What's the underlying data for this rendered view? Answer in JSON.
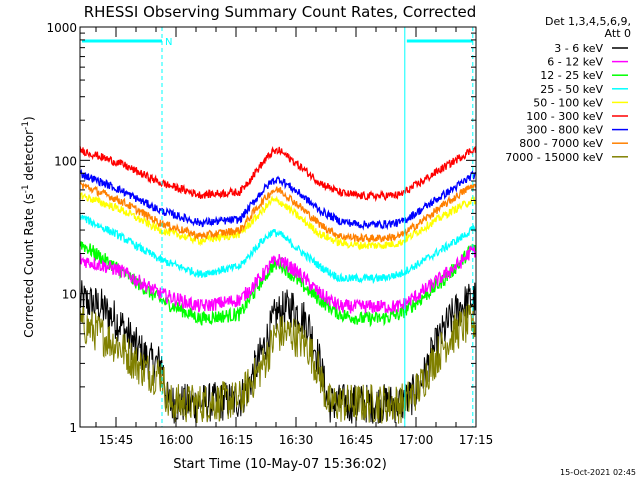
{
  "chart_data": {
    "type": "line",
    "title": "RHESSI Observing Summary Count Rates, Corrected",
    "xlabel": "Start Time (10-May-07 15:36:02)",
    "ylabel_main": "Corrected Count Rate (s",
    "ylabel_sup1": "-1",
    "ylabel_mid": " detector",
    "ylabel_sup2": "-1",
    "ylabel_end": ")",
    "yscale": "log",
    "ylim": [
      1,
      1000
    ],
    "y_ticks": [
      1,
      10,
      100,
      1000
    ],
    "y_tick_labels": [
      "1",
      "10",
      "100",
      "1000"
    ],
    "x_range_minutes": [
      0,
      99
    ],
    "x_ticks": [
      9,
      24,
      39,
      54,
      69,
      84,
      99
    ],
    "x_tick_labels": [
      "15:45",
      "16:00",
      "16:15",
      "16:30",
      "16:45",
      "17:00",
      "17:15"
    ],
    "legend_header": [
      "Det 1,3,4,5,6,9,",
      "Att 0"
    ],
    "legend_placement": "right",
    "footer_date": "15-Oct-2021 02:45",
    "night_marker": "N",
    "night_intervals_minutes": [
      [
        0,
        20.5
      ],
      [
        81.2,
        98.2
      ]
    ],
    "saa_lines_minutes": [
      0,
      20.5,
      81.2,
      98.2
    ],
    "series": [
      {
        "name": "3 - 6 keV",
        "color": "#000000",
        "x": [
          0,
          5,
          10,
          14,
          18,
          20.5,
          22,
          30,
          40,
          42,
          46,
          49,
          53,
          57,
          60,
          62,
          70,
          80,
          82,
          85,
          88,
          92,
          95,
          98
        ],
        "y": [
          9,
          8,
          6,
          4,
          3,
          3,
          1.5,
          1.5,
          1.6,
          2,
          4,
          7,
          8,
          6,
          3,
          1.5,
          1.5,
          1.5,
          1.6,
          2,
          3.5,
          6,
          8,
          9
        ]
      },
      {
        "name": "6 - 12 keV",
        "color": "#ff00ff",
        "x": [
          0,
          10,
          20,
          30,
          40,
          45,
          48,
          50,
          55,
          60,
          65,
          70,
          75,
          80,
          85,
          90,
          95,
          98
        ],
        "y": [
          18,
          15,
          10,
          8,
          9,
          13,
          17,
          18,
          14,
          10,
          8,
          8,
          8,
          8,
          10,
          13,
          17,
          21
        ]
      },
      {
        "name": "12 - 25 keV",
        "color": "#00ff00",
        "x": [
          0,
          10,
          20,
          30,
          40,
          45,
          48,
          50,
          55,
          60,
          65,
          70,
          75,
          80,
          85,
          90,
          95,
          98
        ],
        "y": [
          24,
          15,
          9,
          6.5,
          7,
          12,
          16,
          17,
          12,
          9,
          7,
          6.5,
          6.5,
          7,
          9,
          12,
          17,
          22
        ]
      },
      {
        "name": "25 - 50 keV",
        "color": "#00ffff",
        "x": [
          0,
          10,
          20,
          30,
          40,
          45,
          48,
          50,
          55,
          60,
          65,
          70,
          75,
          80,
          85,
          90,
          95,
          98
        ],
        "y": [
          38,
          27,
          18,
          14,
          16,
          24,
          29,
          28,
          21,
          16,
          13,
          13,
          13,
          14,
          17,
          21,
          26,
          30
        ]
      },
      {
        "name": "50 - 100 keV",
        "color": "#ffff00",
        "x": [
          0,
          10,
          20,
          30,
          40,
          45,
          48,
          50,
          55,
          60,
          65,
          70,
          75,
          80,
          85,
          90,
          95,
          98
        ],
        "y": [
          55,
          43,
          30,
          25,
          28,
          40,
          50,
          49,
          37,
          28,
          24,
          23,
          23,
          24,
          30,
          37,
          45,
          50
        ]
      },
      {
        "name": "100 - 300 keV",
        "color": "#ff0000",
        "x": [
          0,
          10,
          20,
          30,
          40,
          45,
          48,
          50,
          55,
          60,
          65,
          70,
          75,
          80,
          85,
          90,
          95,
          98
        ],
        "y": [
          120,
          95,
          68,
          55,
          58,
          90,
          115,
          118,
          90,
          68,
          57,
          54,
          54,
          55,
          68,
          85,
          105,
          120
        ]
      },
      {
        "name": "300 - 800 keV",
        "color": "#0000ff",
        "x": [
          0,
          10,
          20,
          30,
          40,
          45,
          48,
          50,
          55,
          60,
          65,
          70,
          75,
          80,
          85,
          90,
          95,
          98
        ],
        "y": [
          80,
          60,
          42,
          34,
          36,
          56,
          70,
          72,
          56,
          42,
          35,
          33,
          33,
          34,
          42,
          53,
          66,
          77
        ]
      },
      {
        "name": "800 - 7000 keV",
        "color": "#ff8000",
        "x": [
          0,
          10,
          20,
          30,
          40,
          45,
          48,
          50,
          55,
          60,
          65,
          70,
          75,
          80,
          85,
          90,
          95,
          98
        ],
        "y": [
          66,
          50,
          34,
          27,
          30,
          47,
          59,
          60,
          45,
          33,
          27,
          26,
          26,
          27,
          34,
          44,
          56,
          64
        ]
      },
      {
        "name": "7000 - 15000 keV",
        "color": "#808000",
        "x": [
          0,
          5,
          10,
          14,
          18,
          20.5,
          22,
          30,
          40,
          42,
          46,
          49,
          53,
          57,
          60,
          62,
          70,
          80,
          82,
          85,
          88,
          92,
          95,
          98
        ],
        "y": [
          6,
          5,
          4,
          3,
          2.5,
          2.5,
          1.5,
          1.5,
          1.6,
          2,
          3,
          5,
          5,
          4,
          2.5,
          1.5,
          1.5,
          1.5,
          1.6,
          2,
          3,
          4.5,
          5.5,
          6
        ]
      }
    ]
  }
}
